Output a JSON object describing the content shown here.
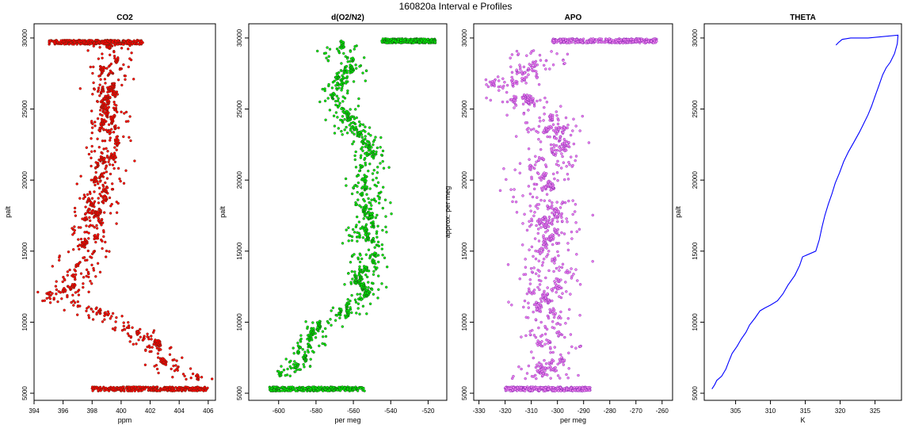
{
  "figure": {
    "title": "160820a   Interval e Profiles"
  },
  "chart_data": [
    {
      "type": "scatter",
      "title": "CO2",
      "xlabel": "ppm",
      "ylabel": "palt",
      "xlim": [
        394,
        406.5
      ],
      "ylim": [
        4500,
        31000
      ],
      "xticks": [
        394,
        396,
        398,
        400,
        402,
        404,
        406
      ],
      "yticks": [
        5000,
        10000,
        15000,
        20000,
        25000,
        30000
      ],
      "color": "#ff0000",
      "outline": "#5a2a10",
      "profile": [
        [
          394.8,
          11600
        ],
        [
          396.0,
          12000
        ],
        [
          396.8,
          12600
        ],
        [
          397.2,
          13500
        ],
        [
          397.3,
          14500
        ],
        [
          397.8,
          15500
        ],
        [
          398.0,
          16500
        ],
        [
          398.1,
          17500
        ],
        [
          398.4,
          18500
        ],
        [
          398.7,
          19500
        ],
        [
          398.9,
          20500
        ],
        [
          399.0,
          21500
        ],
        [
          399.2,
          22500
        ],
        [
          399.2,
          23500
        ],
        [
          399.3,
          24500
        ],
        [
          399.1,
          25500
        ],
        [
          399.0,
          26500
        ],
        [
          399.1,
          27500
        ],
        [
          399.6,
          28500
        ],
        [
          399.2,
          29500
        ],
        [
          398.4,
          10800
        ],
        [
          399.2,
          10200
        ],
        [
          400.2,
          9900
        ],
        [
          401.4,
          9000
        ],
        [
          402.3,
          8200
        ],
        [
          402.8,
          7500
        ],
        [
          403.5,
          6800
        ],
        [
          404.6,
          6200
        ],
        [
          405.5,
          5900
        ]
      ],
      "spread": 1.0,
      "top_band": {
        "y": 29700,
        "xmin": 395.0,
        "xmax": 401.5
      },
      "bottom_band": {
        "y": 5300,
        "xmin": 398.0,
        "xmax": 406.0
      }
    },
    {
      "type": "scatter",
      "title": "d(O2/N2)",
      "xlabel": "per meg",
      "ylabel": "palt",
      "xlim": [
        -616,
        -510
      ],
      "ylim": [
        4500,
        31000
      ],
      "xticks": [
        -600,
        -580,
        -560,
        -540,
        -520
      ],
      "yticks": [
        5000,
        10000,
        15000,
        20000,
        25000,
        30000
      ],
      "color": "#00ee00",
      "outline": "#1a3a1a",
      "profile": [
        [
          -596,
          6200
        ],
        [
          -590,
          7000
        ],
        [
          -586,
          8000
        ],
        [
          -582,
          9000
        ],
        [
          -578,
          10000
        ],
        [
          -564,
          10500
        ],
        [
          -558,
          11500
        ],
        [
          -553,
          12200
        ],
        [
          -557,
          13000
        ],
        [
          -552,
          14000
        ],
        [
          -551,
          15000
        ],
        [
          -553,
          16000
        ],
        [
          -553,
          17000
        ],
        [
          -551,
          18000
        ],
        [
          -553,
          19000
        ],
        [
          -552,
          20000
        ],
        [
          -553,
          21000
        ],
        [
          -551,
          22000
        ],
        [
          -555,
          23000
        ],
        [
          -562,
          24000
        ],
        [
          -567,
          25000
        ],
        [
          -569,
          26000
        ],
        [
          -566,
          27000
        ],
        [
          -562,
          28000
        ],
        [
          -567,
          29000
        ],
        [
          -565,
          29500
        ]
      ],
      "spread": 6,
      "top_band": {
        "y": 29800,
        "xmin": -545,
        "xmax": -516
      },
      "bottom_band": {
        "y": 5300,
        "xmin": -605,
        "xmax": -553
      }
    },
    {
      "type": "scatter",
      "title": "APO",
      "xlabel": "per meg",
      "ylabel": "approx. per meg",
      "xlim": [
        -332,
        -256
      ],
      "ylim": [
        4500,
        31000
      ],
      "xticks": [
        -330,
        -320,
        -310,
        -300,
        -290,
        -280,
        -270,
        -260
      ],
      "yticks": [
        5000,
        10000,
        15000,
        20000,
        25000,
        30000
      ],
      "color": "#ee82ee",
      "outline": "#7a1aaa",
      "profile": [
        [
          -305,
          6000
        ],
        [
          -302,
          7500
        ],
        [
          -303,
          9000
        ],
        [
          -306,
          10500
        ],
        [
          -305,
          12000
        ],
        [
          -302,
          13500
        ],
        [
          -303,
          15000
        ],
        [
          -302,
          16500
        ],
        [
          -304,
          18000
        ],
        [
          -306,
          19500
        ],
        [
          -305,
          21000
        ],
        [
          -298,
          22500
        ],
        [
          -303,
          24000
        ],
        [
          -313,
          25500
        ],
        [
          -322,
          26500
        ],
        [
          -312,
          27500
        ],
        [
          -305,
          28500
        ],
        [
          -308,
          29200
        ]
      ],
      "spread": 8,
      "top_band": {
        "y": 29800,
        "xmin": -302,
        "xmax": -262
      },
      "bottom_band": {
        "y": 5300,
        "xmin": -320,
        "xmax": -287
      }
    },
    {
      "type": "line",
      "title": "THETA",
      "xlabel": "K",
      "ylabel": "palt",
      "xlim": [
        300.5,
        328.8
      ],
      "ylim": [
        4500,
        31000
      ],
      "xticks": [
        305,
        310,
        315,
        320,
        325
      ],
      "yticks": [
        5000,
        10000,
        15000,
        20000,
        25000,
        30000
      ],
      "color": "#0000ff",
      "x": [
        301.6,
        302.0,
        302.3,
        303.0,
        303.6,
        304.0,
        304.5,
        305.2,
        305.8,
        306.5,
        307.0,
        307.8,
        308.5,
        309.2,
        310.0,
        311.0,
        311.8,
        312.5,
        313.5,
        314.2,
        314.6,
        316.5,
        317.0,
        317.4,
        317.8,
        318.3,
        318.8,
        319.3,
        319.9,
        320.5,
        321.2,
        322.0,
        322.8,
        323.4,
        324.0,
        324.5,
        325.0,
        325.6,
        326.1,
        326.6,
        327.2,
        327.8,
        328.2,
        328.3,
        324.0,
        321.5,
        320.3,
        319.8,
        319.4
      ],
      "y": [
        5300,
        5600,
        5900,
        6200,
        6700,
        7200,
        7800,
        8300,
        8800,
        9300,
        9800,
        10300,
        10800,
        11000,
        11200,
        11500,
        12000,
        12600,
        13300,
        14000,
        14600,
        15000,
        15800,
        16700,
        17500,
        18300,
        19000,
        19800,
        20500,
        21300,
        22000,
        22700,
        23400,
        24000,
        24600,
        25200,
        25900,
        26700,
        27400,
        27900,
        28300,
        28900,
        29600,
        30200,
        30000,
        30000,
        29900,
        29700,
        29500
      ]
    }
  ]
}
